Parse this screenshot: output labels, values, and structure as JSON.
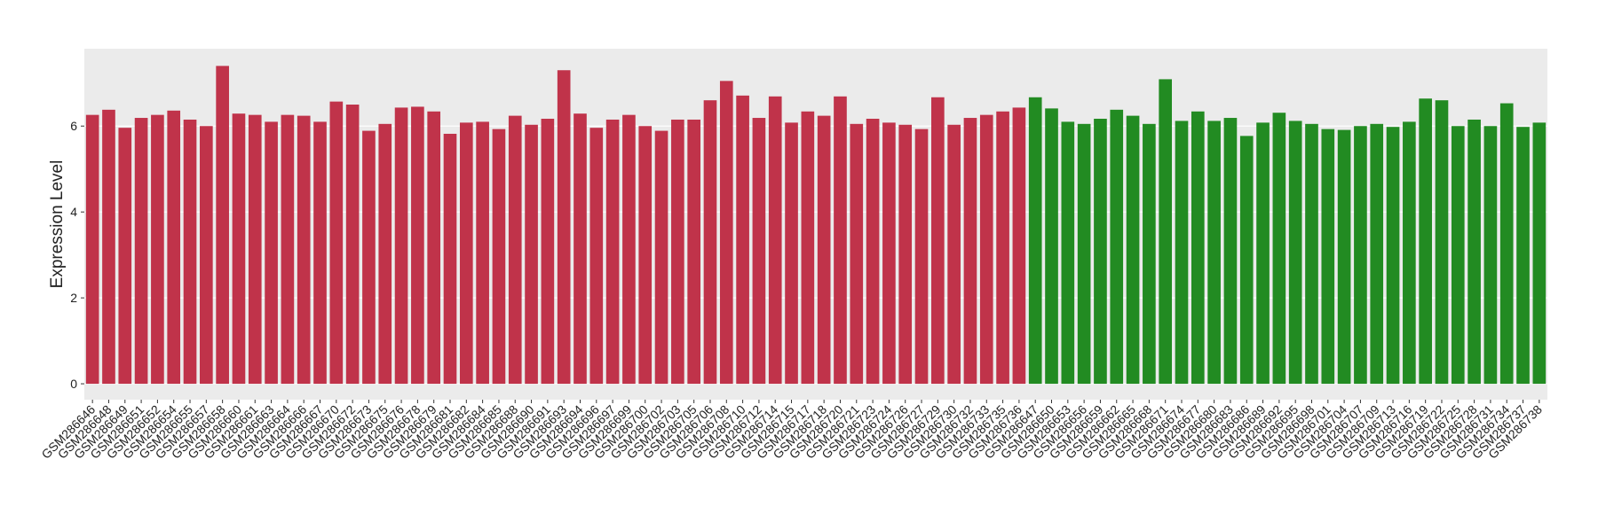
{
  "chart_data": {
    "type": "bar",
    "y_label": "Expression Level",
    "categories": [
      "GSM286646",
      "GSM286648",
      "GSM286649",
      "GSM286651",
      "GSM286652",
      "GSM286654",
      "GSM286655",
      "GSM286657",
      "GSM286658",
      "GSM286660",
      "GSM286661",
      "GSM286663",
      "GSM286664",
      "GSM286666",
      "GSM286667",
      "GSM286670",
      "GSM286672",
      "GSM286673",
      "GSM286675",
      "GSM286676",
      "GSM286678",
      "GSM286679",
      "GSM286681",
      "GSM286682",
      "GSM286684",
      "GSM286685",
      "GSM286688",
      "GSM286690",
      "GSM286691",
      "GSM286693",
      "GSM286694",
      "GSM286696",
      "GSM286697",
      "GSM286699",
      "GSM286700",
      "GSM286702",
      "GSM286703",
      "GSM286705",
      "GSM286706",
      "GSM286708",
      "GSM286710",
      "GSM286712",
      "GSM286714",
      "GSM286715",
      "GSM286717",
      "GSM286718",
      "GSM286720",
      "GSM286721",
      "GSM286723",
      "GSM286724",
      "GSM286726",
      "GSM286727",
      "GSM286729",
      "GSM286730",
      "GSM286732",
      "GSM286733",
      "GSM286735",
      "GSM286736",
      "GSM286647",
      "GSM286650",
      "GSM286653",
      "GSM286656",
      "GSM286659",
      "GSM286662",
      "GSM286665",
      "GSM286668",
      "GSM286671",
      "GSM286674",
      "GSM286677",
      "GSM286680",
      "GSM286683",
      "GSM286686",
      "GSM286689",
      "GSM286692",
      "GSM286695",
      "GSM286698",
      "GSM286701",
      "GSM286704",
      "GSM286707",
      "GSM286709",
      "GSM286713",
      "GSM286716",
      "GSM286719",
      "GSM286722",
      "GSM286725",
      "GSM286728",
      "GSM286731",
      "GSM286734",
      "GSM286737",
      "GSM286738"
    ],
    "values": [
      6.26,
      6.38,
      5.96,
      6.19,
      6.26,
      6.36,
      6.15,
      6.0,
      7.4,
      6.29,
      6.26,
      6.1,
      6.26,
      6.24,
      6.1,
      6.57,
      6.5,
      5.89,
      6.05,
      6.43,
      6.45,
      6.34,
      5.82,
      6.08,
      6.1,
      5.93,
      6.24,
      6.03,
      6.17,
      7.3,
      6.29,
      5.96,
      6.15,
      6.26,
      6.0,
      5.89,
      6.15,
      6.15,
      6.6,
      7.05,
      6.71,
      6.19,
      6.69,
      6.08,
      6.34,
      6.24,
      6.69,
      6.05,
      6.17,
      6.08,
      6.03,
      5.93,
      6.67,
      6.03,
      6.19,
      6.26,
      6.34,
      6.43,
      6.67,
      6.41,
      6.1,
      6.05,
      6.17,
      6.38,
      6.24,
      6.05,
      7.09,
      6.12,
      6.34,
      6.12,
      6.19,
      5.77,
      6.08,
      6.31,
      6.12,
      6.05,
      5.93,
      5.91,
      6.0,
      6.05,
      5.98,
      6.1,
      6.64,
      6.6,
      6.0,
      6.15,
      6.0,
      6.53,
      5.98,
      6.08
    ],
    "colors": [
      "#c0334a",
      "#c0334a",
      "#c0334a",
      "#c0334a",
      "#c0334a",
      "#c0334a",
      "#c0334a",
      "#c0334a",
      "#c0334a",
      "#c0334a",
      "#c0334a",
      "#c0334a",
      "#c0334a",
      "#c0334a",
      "#c0334a",
      "#c0334a",
      "#c0334a",
      "#c0334a",
      "#c0334a",
      "#c0334a",
      "#c0334a",
      "#c0334a",
      "#c0334a",
      "#c0334a",
      "#c0334a",
      "#c0334a",
      "#c0334a",
      "#c0334a",
      "#c0334a",
      "#c0334a",
      "#c0334a",
      "#c0334a",
      "#c0334a",
      "#c0334a",
      "#c0334a",
      "#c0334a",
      "#c0334a",
      "#c0334a",
      "#c0334a",
      "#c0334a",
      "#c0334a",
      "#c0334a",
      "#c0334a",
      "#c0334a",
      "#c0334a",
      "#c0334a",
      "#c0334a",
      "#c0334a",
      "#c0334a",
      "#c0334a",
      "#c0334a",
      "#c0334a",
      "#c0334a",
      "#c0334a",
      "#c0334a",
      "#c0334a",
      "#c0334a",
      "#c0334a",
      "#228b22",
      "#228b22",
      "#228b22",
      "#228b22",
      "#228b22",
      "#228b22",
      "#228b22",
      "#228b22",
      "#228b22",
      "#228b22",
      "#228b22",
      "#228b22",
      "#228b22",
      "#228b22",
      "#228b22",
      "#228b22",
      "#228b22",
      "#228b22",
      "#228b22",
      "#228b22",
      "#228b22",
      "#228b22",
      "#228b22",
      "#228b22",
      "#228b22",
      "#228b22",
      "#228b22",
      "#228b22",
      "#228b22",
      "#228b22",
      "#228b22",
      "#228b22"
    ],
    "ylim": [
      -0.37,
      7.8
    ],
    "yticks": [
      0,
      2,
      4,
      6
    ],
    "grid": true
  }
}
